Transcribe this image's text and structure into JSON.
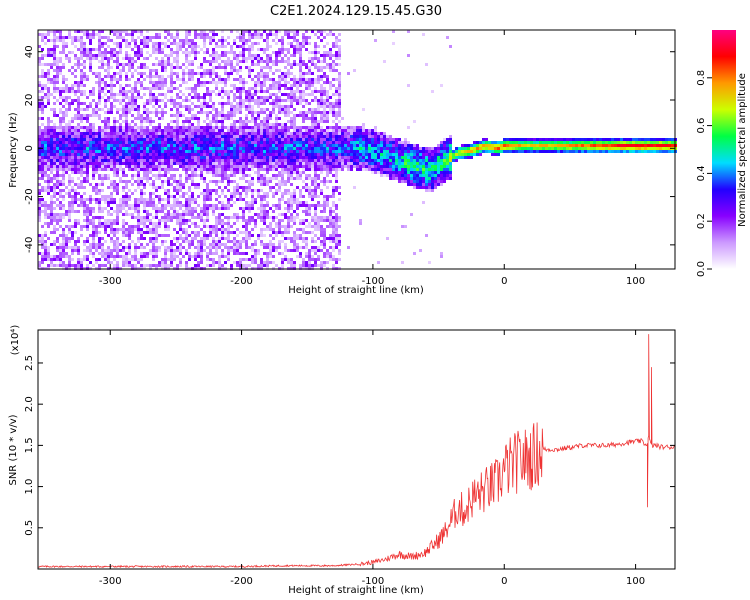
{
  "figure_title": "C2E1.2024.129.15.45.G30",
  "chart_data": [
    {
      "type": "heatmap",
      "title": "C2E1.2024.129.15.45.G30",
      "xlabel": "Height of straight line (km)",
      "ylabel": "Frequency (Hz)",
      "xlim": [
        -355,
        130
      ],
      "ylim": [
        -50,
        49
      ],
      "x_ticks": [
        -300,
        -200,
        -100,
        0,
        100
      ],
      "y_ticks": [
        -40,
        -20,
        0,
        20,
        40
      ],
      "colorbar": {
        "label": "Normalized spectral amplitude",
        "range": [
          0.0,
          1.0
        ],
        "ticks": [
          0.0,
          0.2,
          0.4,
          0.6,
          0.8
        ],
        "colormap": [
          "#ffffff",
          "#cc99ff",
          "#8800ff",
          "#2200ff",
          "#00ddff",
          "#00ff44",
          "#ccff00",
          "#ff9900",
          "#ff0000",
          "#ff0080"
        ]
      },
      "ridge": {
        "description_points_x": [
          -125,
          -110,
          -95,
          -85,
          -75,
          -65,
          -55,
          -45,
          -35,
          -25,
          -15,
          -5,
          0,
          20,
          50,
          100,
          130
        ],
        "description_points_y": [
          0,
          0,
          -2,
          -4,
          -6,
          -8,
          -9,
          -5,
          -2,
          -1,
          1,
          0,
          1,
          1,
          1,
          1,
          1
        ],
        "strength": [
          0.35,
          0.45,
          0.45,
          0.45,
          0.5,
          0.55,
          0.55,
          0.55,
          0.75,
          0.8,
          0.8,
          0.85,
          0.85,
          0.75,
          0.8,
          0.95,
          0.9
        ]
      },
      "noise_region_x": [
        -355,
        -125
      ]
    },
    {
      "type": "line",
      "title": "",
      "xlabel": "Height of straight line (km)",
      "ylabel": "SNR (10 * v/v)",
      "y_scale_label": "(x10⁴)",
      "xlim": [
        -355,
        130
      ],
      "ylim": [
        0,
        2.9
      ],
      "x_ticks": [
        -300,
        -200,
        -100,
        0,
        100
      ],
      "y_ticks": [
        0.5,
        1.0,
        1.5,
        2.0,
        2.5
      ],
      "y_tick_labels": [
        "0.5",
        "1.0",
        "1.5",
        "2.0",
        "2.5"
      ],
      "color": "#ee3333",
      "series": [
        {
          "x": [
            -355,
            -300,
            -250,
            -200,
            -170,
            -150,
            -130,
            -110,
            -100,
            -90,
            -80,
            -70,
            -60,
            -50,
            -45,
            -40,
            -35,
            -30,
            -25,
            -20,
            -15,
            -10,
            -5,
            0,
            5,
            10,
            20,
            30,
            40,
            60,
            80,
            100,
            105,
            108,
            110,
            112,
            115,
            120,
            130
          ],
          "y": [
            0.03,
            0.03,
            0.03,
            0.03,
            0.04,
            0.04,
            0.04,
            0.06,
            0.08,
            0.12,
            0.18,
            0.15,
            0.2,
            0.35,
            0.45,
            0.6,
            0.75,
            0.7,
            0.85,
            0.9,
            0.95,
            1.0,
            1.05,
            1.2,
            1.25,
            1.3,
            1.35,
            1.45,
            1.45,
            1.5,
            1.5,
            1.55,
            1.55,
            1.5,
            1.6,
            1.5,
            1.5,
            1.48,
            1.48
          ]
        }
      ],
      "spikes": [
        {
          "x": 110,
          "y": 2.85
        },
        {
          "x": 112,
          "y": 2.45
        },
        {
          "x": 109,
          "y": 0.75
        }
      ]
    }
  ]
}
